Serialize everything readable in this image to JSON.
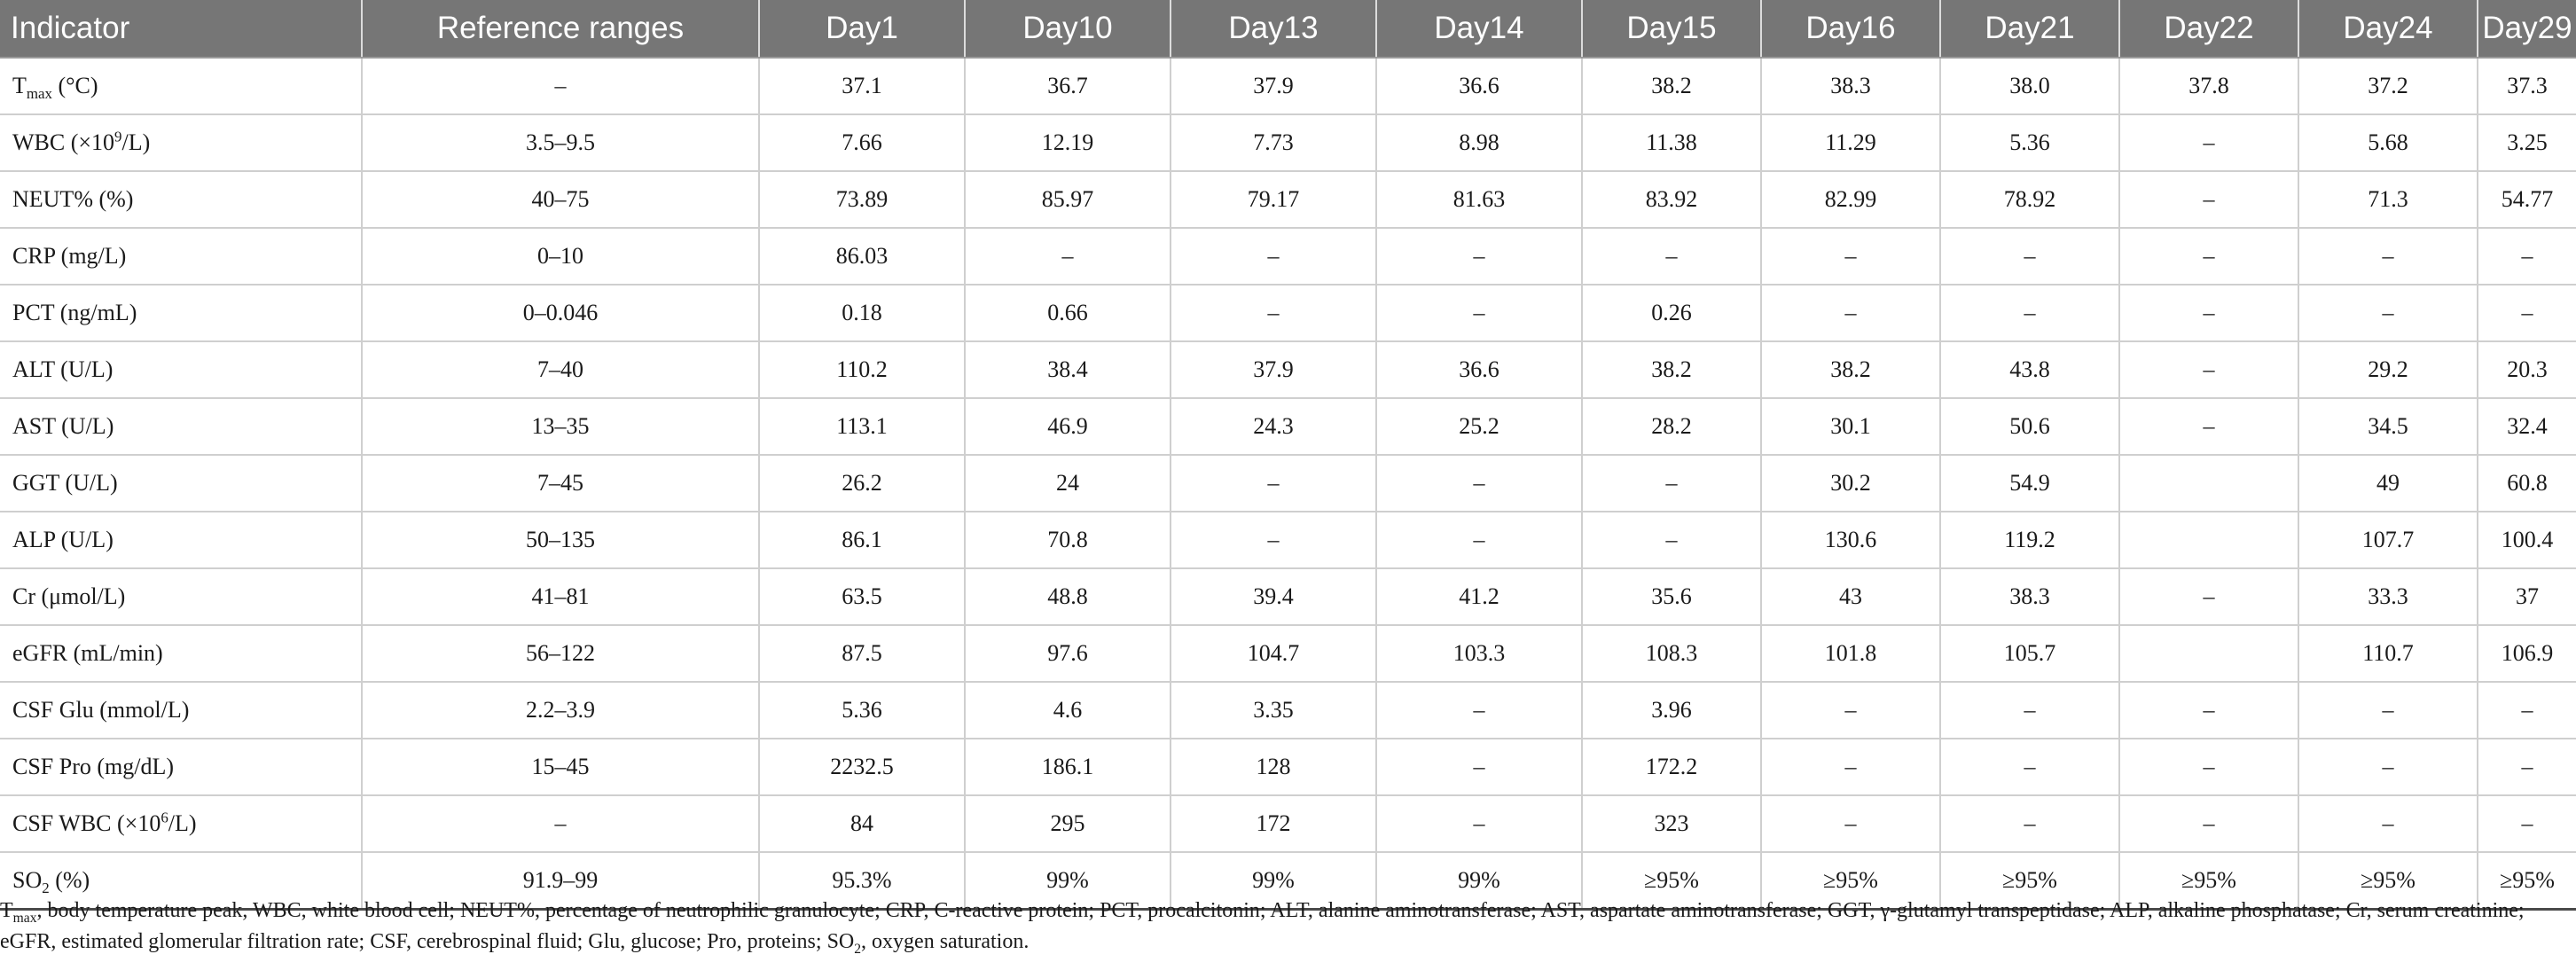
{
  "table": {
    "headers": [
      "Indicator",
      "Reference ranges",
      "Day1",
      "Day10",
      "Day13",
      "Day14",
      "Day15",
      "Day16",
      "Day21",
      "Day22",
      "Day24",
      "Day29"
    ],
    "rows": [
      {
        "indicator": {
          "base": "T",
          "sub": "max",
          "sup": "",
          "after": " (°C)"
        },
        "ref": "–",
        "values": [
          "37.1",
          "36.7",
          "37.9",
          "36.6",
          "38.2",
          "38.3",
          "38.0",
          "37.8",
          "37.2",
          "37.3"
        ]
      },
      {
        "indicator": {
          "base": "WBC (×10",
          "sub": "",
          "sup": "9",
          "after": "/L)"
        },
        "ref": "3.5–9.5",
        "values": [
          "7.66",
          "12.19",
          "7.73",
          "8.98",
          "11.38",
          "11.29",
          "5.36",
          "–",
          "5.68",
          "3.25"
        ]
      },
      {
        "indicator": {
          "base": "NEUT% (%)",
          "sub": "",
          "sup": "",
          "after": ""
        },
        "ref": "40–75",
        "values": [
          "73.89",
          "85.97",
          "79.17",
          "81.63",
          "83.92",
          "82.99",
          "78.92",
          "–",
          "71.3",
          "54.77"
        ]
      },
      {
        "indicator": {
          "base": "CRP (mg/L)",
          "sub": "",
          "sup": "",
          "after": ""
        },
        "ref": "0–10",
        "values": [
          "86.03",
          "–",
          "–",
          "–",
          "–",
          "–",
          "–",
          "–",
          "–",
          "–"
        ]
      },
      {
        "indicator": {
          "base": "PCT (ng/mL)",
          "sub": "",
          "sup": "",
          "after": ""
        },
        "ref": "0–0.046",
        "values": [
          "0.18",
          "0.66",
          "–",
          "–",
          "0.26",
          "–",
          "–",
          "–",
          "–",
          "–"
        ]
      },
      {
        "indicator": {
          "base": "ALT (U/L)",
          "sub": "",
          "sup": "",
          "after": ""
        },
        "ref": "7–40",
        "values": [
          "110.2",
          "38.4",
          "37.9",
          "36.6",
          "38.2",
          "38.2",
          "43.8",
          "–",
          "29.2",
          "20.3"
        ]
      },
      {
        "indicator": {
          "base": "AST (U/L)",
          "sub": "",
          "sup": "",
          "after": ""
        },
        "ref": "13–35",
        "values": [
          "113.1",
          "46.9",
          "24.3",
          "25.2",
          "28.2",
          "30.1",
          "50.6",
          "–",
          "34.5",
          "32.4"
        ]
      },
      {
        "indicator": {
          "base": "GGT (U/L)",
          "sub": "",
          "sup": "",
          "after": ""
        },
        "ref": "7–45",
        "values": [
          "26.2",
          "24",
          "–",
          "–",
          "–",
          "30.2",
          "54.9",
          "",
          "49",
          "60.8"
        ]
      },
      {
        "indicator": {
          "base": "ALP (U/L)",
          "sub": "",
          "sup": "",
          "after": ""
        },
        "ref": "50–135",
        "values": [
          "86.1",
          "70.8",
          "–",
          "–",
          "–",
          "130.6",
          "119.2",
          "",
          "107.7",
          "100.4"
        ]
      },
      {
        "indicator": {
          "base": "Cr (μmol/L)",
          "sub": "",
          "sup": "",
          "after": ""
        },
        "ref": "41–81",
        "values": [
          "63.5",
          "48.8",
          "39.4",
          "41.2",
          "35.6",
          "43",
          "38.3",
          "–",
          "33.3",
          "37"
        ]
      },
      {
        "indicator": {
          "base": "eGFR (mL/min)",
          "sub": "",
          "sup": "",
          "after": ""
        },
        "ref": "56–122",
        "values": [
          "87.5",
          "97.6",
          "104.7",
          "103.3",
          "108.3",
          "101.8",
          "105.7",
          "",
          "110.7",
          "106.9"
        ]
      },
      {
        "indicator": {
          "base": "CSF Glu (mmol/L)",
          "sub": "",
          "sup": "",
          "after": ""
        },
        "ref": "2.2–3.9",
        "values": [
          "5.36",
          "4.6",
          "3.35",
          "–",
          "3.96",
          "–",
          "–",
          "–",
          "–",
          "–"
        ]
      },
      {
        "indicator": {
          "base": "CSF Pro (mg/dL)",
          "sub": "",
          "sup": "",
          "after": ""
        },
        "ref": "15–45",
        "values": [
          "2232.5",
          "186.1",
          "128",
          "–",
          "172.2",
          "–",
          "–",
          "–",
          "–",
          "–"
        ]
      },
      {
        "indicator": {
          "base": "CSF WBC (×10",
          "sub": "",
          "sup": "6",
          "after": "/L)"
        },
        "ref": "–",
        "values": [
          "84",
          "295",
          "172",
          "–",
          "323",
          "–",
          "–",
          "–",
          "–",
          "–"
        ]
      },
      {
        "indicator": {
          "base": "SO",
          "sub": "2",
          "sup": "",
          "after": " (%)"
        },
        "ref": "91.9–99",
        "values": [
          "95.3%",
          "99%",
          "99%",
          "99%",
          "≥95%",
          "≥95%",
          "≥95%",
          "≥95%",
          "≥95%",
          "≥95%"
        ]
      }
    ]
  },
  "footnote": {
    "t": "T",
    "t_sub": "max",
    "part1": ", body temperature peak, WBC, white blood cell; NEUT%, percentage of neutrophilic granulocyte; CRP, C-reactive protein; PCT, procalcitonin; ALT, alanine aminotransferase; AST, aspartate aminotransferase; GGT, γ-glutamyl transpeptidase; ALP, alkaline phosphatase; Cr, serum creatinine; eGFR, estimated glomerular filtration rate; CSF, cerebrospinal fluid; Glu, glucose; Pro, proteins; SO",
    "so_sub": "2",
    "part2": ", oxygen saturation."
  },
  "colors": {
    "header_bg": "#767676",
    "header_text": "#ffffff",
    "grid_line": "#cfcfcf"
  }
}
